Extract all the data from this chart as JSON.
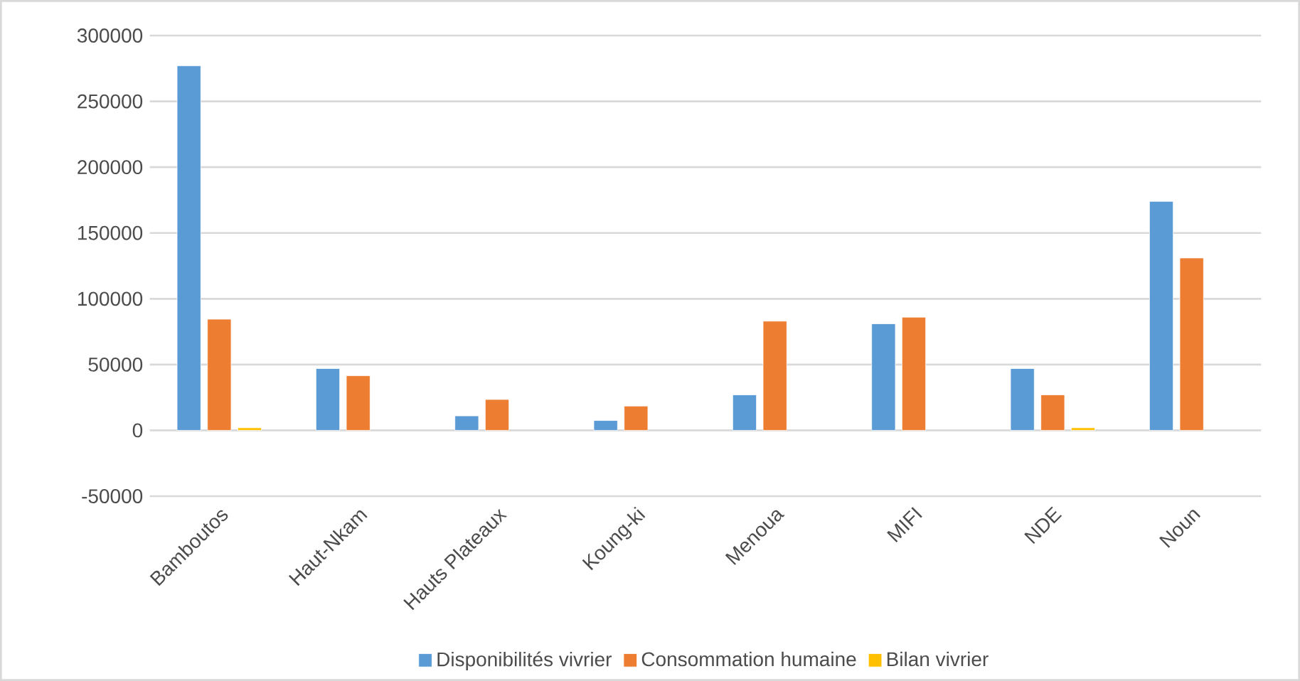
{
  "chart_data": {
    "type": "bar",
    "categories": [
      "Bamboutos",
      "Haut-Nkam",
      "Hauts Plateaux",
      "Koung-ki",
      "Menoua",
      "MIFI",
      "NDE",
      "Noun"
    ],
    "series": [
      {
        "name": "Disponibilités vivrier",
        "color": "#5b9bd5",
        "values": [
          277000,
          47000,
          11000,
          7500,
          27000,
          81000,
          47000,
          174000
        ]
      },
      {
        "name": "Consommation humaine",
        "color": "#ed7d31",
        "values": [
          84500,
          41500,
          23500,
          18500,
          83000,
          86000,
          27000,
          131000
        ]
      },
      {
        "name": "Bilan vivrier",
        "color": "#ffc000",
        "values": [
          2000,
          null,
          null,
          null,
          null,
          null,
          2000,
          null
        ]
      }
    ],
    "ylim": [
      -50000,
      300000
    ],
    "yticks": [
      -50000,
      0,
      50000,
      100000,
      150000,
      200000,
      250000,
      300000
    ],
    "grid": "y",
    "legend": "bottom"
  }
}
